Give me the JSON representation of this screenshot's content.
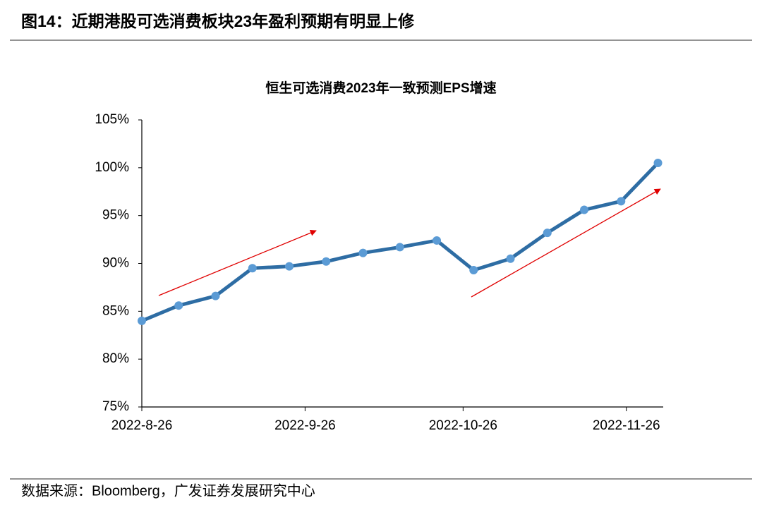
{
  "header": {
    "title": "图14：近期港股可选消费板块23年盈利预期有明显上修"
  },
  "chart_data": {
    "type": "line",
    "title": "恒生可选消费2023年一致预测EPS增速",
    "x": [
      "2022-08-26",
      "2022-09-02",
      "2022-09-09",
      "2022-09-16",
      "2022-09-23",
      "2022-09-30",
      "2022-10-07",
      "2022-10-14",
      "2022-10-21",
      "2022-10-28",
      "2022-11-04",
      "2022-11-11",
      "2022-11-18",
      "2022-11-25",
      "2022-12-02"
    ],
    "series": [
      {
        "color": "#2e6da4",
        "marker_color": "#5b9bd5",
        "values": [
          84.0,
          85.6,
          86.6,
          89.5,
          89.7,
          90.2,
          91.1,
          91.7,
          92.4,
          89.3,
          90.5,
          93.2,
          95.6,
          96.5,
          100.5
        ]
      }
    ],
    "xlim": [
      "2022-08-26",
      "2022-12-03"
    ],
    "xticks": [
      {
        "value": "2022-08-26",
        "label": "2022-8-26"
      },
      {
        "value": "2022-09-26",
        "label": "2022-9-26"
      },
      {
        "value": "2022-10-26",
        "label": "2022-10-26"
      },
      {
        "value": "2022-11-26",
        "label": "2022-11-26"
      }
    ],
    "ylim": [
      75,
      105
    ],
    "yticks": [
      {
        "value": 75,
        "label": "75%"
      },
      {
        "value": 80,
        "label": "80%"
      },
      {
        "value": 85,
        "label": "85%"
      },
      {
        "value": 90,
        "label": "90%"
      },
      {
        "value": 95,
        "label": "95%"
      },
      {
        "value": 100,
        "label": "100%"
      },
      {
        "value": 105,
        "label": "105%"
      }
    ],
    "grid": false
  },
  "footer": {
    "source": "数据来源：Bloomberg，广发证券发展研究中心"
  }
}
